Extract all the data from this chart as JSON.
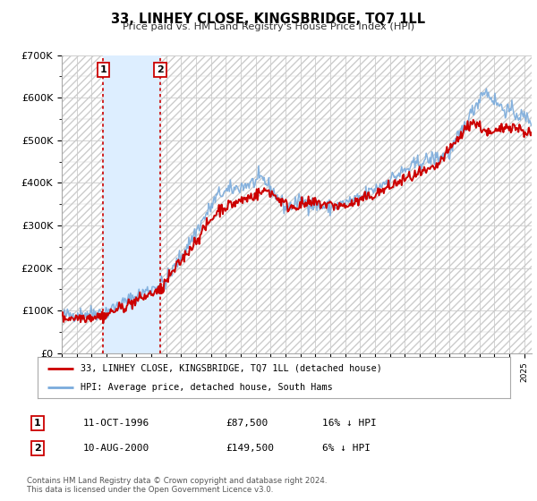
{
  "title": "33, LINHEY CLOSE, KINGSBRIDGE, TQ7 1LL",
  "subtitle": "Price paid vs. HM Land Registry's House Price Index (HPI)",
  "legend_line1": "33, LINHEY CLOSE, KINGSBRIDGE, TQ7 1LL (detached house)",
  "legend_line2": "HPI: Average price, detached house, South Hams",
  "footer1": "Contains HM Land Registry data © Crown copyright and database right 2024.",
  "footer2": "This data is licensed under the Open Government Licence v3.0.",
  "sale1_date": "11-OCT-1996",
  "sale1_price": "£87,500",
  "sale1_hpi": "16% ↓ HPI",
  "sale2_date": "10-AUG-2000",
  "sale2_price": "£149,500",
  "sale2_hpi": "6% ↓ HPI",
  "sale1_x": 1996.78,
  "sale1_y": 87500,
  "sale2_x": 2000.6,
  "sale2_y": 149500,
  "vline1_x": 1996.78,
  "vline2_x": 2000.6,
  "shade_start": 1996.78,
  "shade_end": 2000.6,
  "xmin": 1994.0,
  "xmax": 2025.5,
  "ymin": 0,
  "ymax": 700000,
  "yticks": [
    0,
    100000,
    200000,
    300000,
    400000,
    500000,
    600000,
    700000
  ],
  "ytick_labels": [
    "£0",
    "£100K",
    "£200K",
    "£300K",
    "£400K",
    "£500K",
    "£600K",
    "£700K"
  ],
  "red_line_color": "#cc0000",
  "blue_line_color": "#7aabdc",
  "shade_color": "#ddeeff",
  "hatch_color": "#cccccc",
  "vline_color": "#cc0000",
  "grid_color": "#cccccc",
  "background_color": "#ffffff",
  "plot_bg_color": "#f5f5f5"
}
